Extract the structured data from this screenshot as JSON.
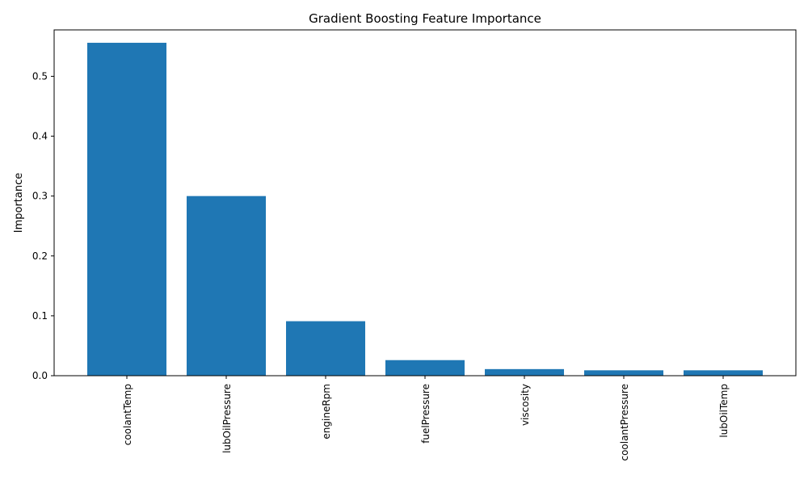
{
  "chart_data": {
    "type": "bar",
    "title": "Gradient Boosting Feature Importance",
    "xlabel": "",
    "ylabel": "Importance",
    "categories": [
      "coolantTemp",
      "lubOilPressure",
      "engineRpm",
      "fuelPressure",
      "viscosity",
      "coolantPressure",
      "lubOilTemp"
    ],
    "values": [
      0.556,
      0.3,
      0.091,
      0.026,
      0.011,
      0.009,
      0.009
    ],
    "ylim": [
      0,
      0.5775
    ],
    "yticks": [
      0.0,
      0.1,
      0.2,
      0.3,
      0.4,
      0.5
    ],
    "ytick_labels": [
      "0.0",
      "0.1",
      "0.2",
      "0.3",
      "0.4",
      "0.5"
    ],
    "grid": false,
    "legend": "none",
    "bar_color": "#1f77b4"
  }
}
